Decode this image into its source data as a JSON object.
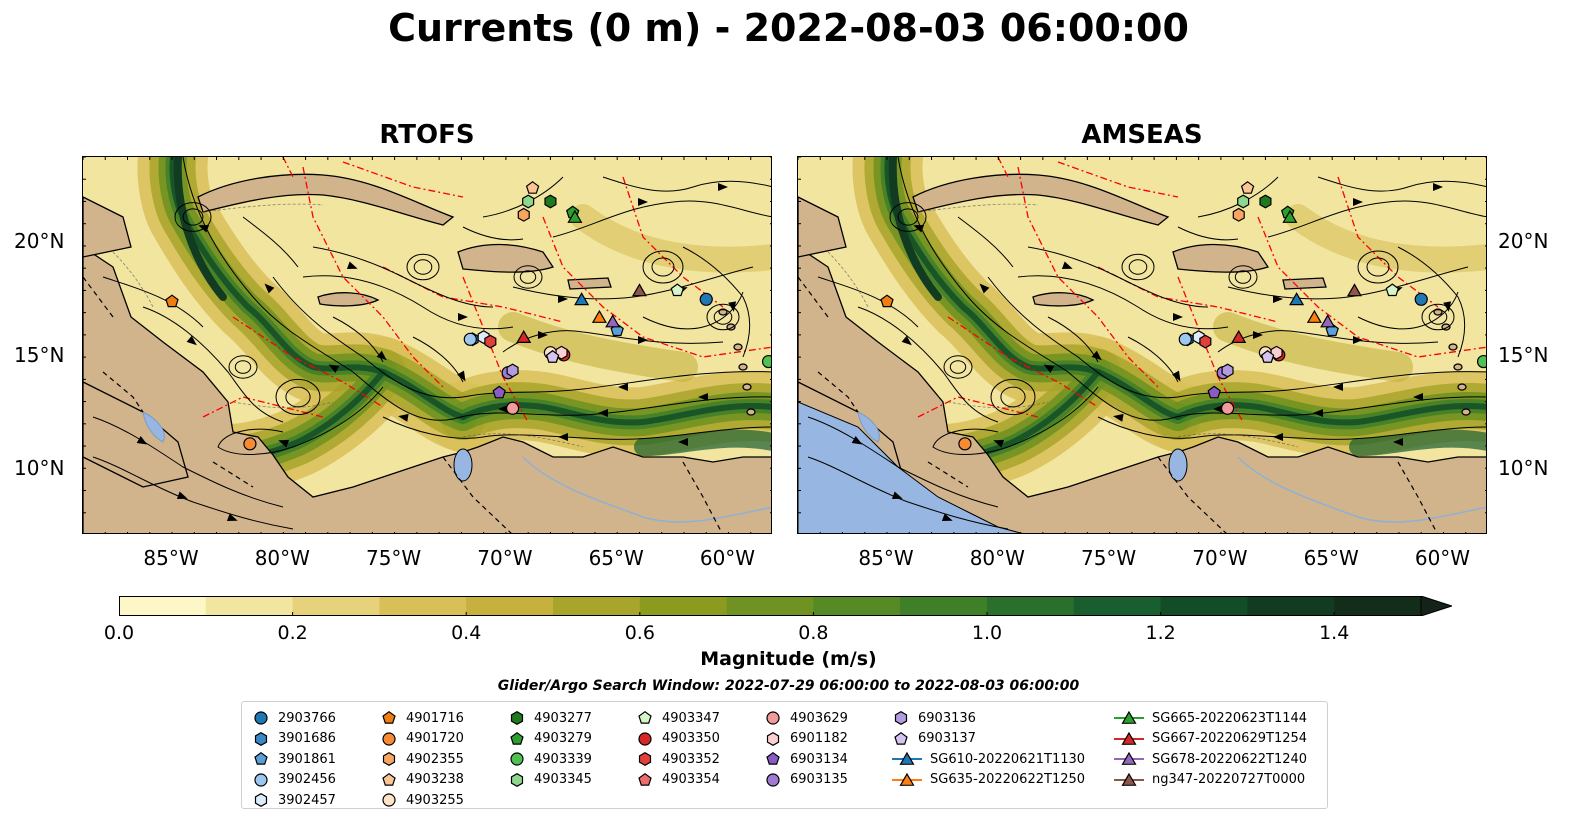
{
  "title": "Currents (0 m) - 2022-08-03 06:00:00",
  "panels": [
    {
      "id": "rtofs",
      "title": "RTOFS"
    },
    {
      "id": "amseas",
      "title": "AMSEAS"
    }
  ],
  "map_extent": {
    "lon": [
      -89,
      -58
    ],
    "lat": [
      7,
      24
    ]
  },
  "lat_ticks": [
    "20°N",
    "15°N",
    "10°N"
  ],
  "lon_ticks": [
    "85°W",
    "80°W",
    "75°W",
    "70°W",
    "65°W",
    "60°W"
  ],
  "colorbar": {
    "label": "Magnitude (m/s)",
    "ticks": [
      "0.0",
      "0.2",
      "0.4",
      "0.6",
      "0.8",
      "1.0",
      "1.2",
      "1.4"
    ],
    "range": [
      0,
      1.5
    ],
    "extend": "max",
    "colors": [
      "#fdf6c6",
      "#f1e5a0",
      "#e6d27a",
      "#d9bf58",
      "#c6b03e",
      "#a8a52c",
      "#8c9b20",
      "#6f9222",
      "#558a25",
      "#3e7f28",
      "#2a6f2c",
      "#185e2e",
      "#124d28",
      "#123c22",
      "#142d1b",
      "#14221a"
    ]
  },
  "colors": {
    "land": "#d2b48c",
    "boundary": "#ff0000",
    "lake": "#97b6e1"
  },
  "search_window": "Glider/Argo Search Window: 2022-07-29 06:00:00 to 2022-08-03 06:00:00",
  "legend": [
    [
      {
        "label": "2903766",
        "marker": "circle",
        "color": "#1f77b4"
      },
      {
        "label": "3901686",
        "marker": "hexagon",
        "color": "#3a87c4"
      },
      {
        "label": "3901861",
        "marker": "pentagon",
        "color": "#5a9fd8"
      },
      {
        "label": "3902456",
        "marker": "circle",
        "color": "#9dc8ee"
      },
      {
        "label": "3902457",
        "marker": "hexagon",
        "color": "#dcecfb"
      }
    ],
    [
      {
        "label": "4901716",
        "marker": "pentagon",
        "color": "#ef7d10"
      },
      {
        "label": "4901720",
        "marker": "circle",
        "color": "#f68a35"
      },
      {
        "label": "4902355",
        "marker": "hexagon",
        "color": "#f8a561"
      },
      {
        "label": "4903238",
        "marker": "pentagon",
        "color": "#fbc594"
      },
      {
        "label": "4903255",
        "marker": "circle",
        "color": "#fde3c8"
      }
    ],
    [
      {
        "label": "4903277",
        "marker": "hexagon",
        "color": "#1f7a1f"
      },
      {
        "label": "4903279",
        "marker": "pentagon",
        "color": "#2f9e2f"
      },
      {
        "label": "4903339",
        "marker": "circle",
        "color": "#50c050"
      },
      {
        "label": "4903345",
        "marker": "hexagon",
        "color": "#8ed88e"
      }
    ],
    [
      {
        "label": "4903347",
        "marker": "pentagon",
        "color": "#d6f5c8"
      },
      {
        "label": "4903350",
        "marker": "circle",
        "color": "#d62728"
      },
      {
        "label": "4903352",
        "marker": "hexagon",
        "color": "#e0403a"
      },
      {
        "label": "4903354",
        "marker": "pentagon",
        "color": "#f06b6b"
      }
    ],
    [
      {
        "label": "4903629",
        "marker": "circle",
        "color": "#f39a9a"
      },
      {
        "label": "6901182",
        "marker": "hexagon",
        "color": "#fbd0d0"
      },
      {
        "label": "6903134",
        "marker": "pentagon",
        "color": "#8a5bc4"
      },
      {
        "label": "6903135",
        "marker": "circle",
        "color": "#9e7ad2"
      }
    ],
    [
      {
        "label": "6903136",
        "marker": "hexagon",
        "color": "#b39be0"
      },
      {
        "label": "6903137",
        "marker": "pentagon",
        "color": "#d3c5f0"
      },
      {
        "label": "SG610-20220621T1130",
        "marker": "triangle",
        "color": "#1f77b4"
      },
      {
        "label": "SG635-20220622T1250",
        "marker": "triangle",
        "color": "#ff7f0e"
      }
    ],
    [
      {
        "label": "SG665-20220623T1144",
        "marker": "triangle",
        "color": "#2ca02c"
      },
      {
        "label": "SG667-20220629T1254",
        "marker": "triangle",
        "color": "#d62728"
      },
      {
        "label": "SG678-20220622T1240",
        "marker": "triangle",
        "color": "#9467bd"
      },
      {
        "label": "ng347-20220727T0000",
        "marker": "triangle",
        "color": "#8c564b"
      }
    ]
  ],
  "platforms": [
    {
      "label": "2903766",
      "lon": -61.0,
      "lat": 17.6
    },
    {
      "label": "3901686",
      "lon": -71.5,
      "lat": 15.8
    },
    {
      "label": "3901861",
      "lon": -65.0,
      "lat": 16.2
    },
    {
      "label": "3902456",
      "lon": -71.6,
      "lat": 15.8
    },
    {
      "label": "3902457",
      "lon": -71.0,
      "lat": 15.9
    },
    {
      "label": "4901716",
      "lon": -85.0,
      "lat": 17.5
    },
    {
      "label": "4901720",
      "lon": -81.5,
      "lat": 11.1
    },
    {
      "label": "4902355",
      "lon": -69.2,
      "lat": 21.4
    },
    {
      "label": "4903238",
      "lon": -68.8,
      "lat": 22.6
    },
    {
      "label": "4903255",
      "lon": -68.0,
      "lat": 15.2
    },
    {
      "label": "4903277",
      "lon": -68.0,
      "lat": 22.0
    },
    {
      "label": "4903279",
      "lon": -67.0,
      "lat": 21.5
    },
    {
      "label": "4903339",
      "lon": -58.2,
      "lat": 14.8
    },
    {
      "label": "4903345",
      "lon": -69.0,
      "lat": 22.0
    },
    {
      "label": "4903347",
      "lon": -62.3,
      "lat": 18.0
    },
    {
      "label": "4903350",
      "lon": -67.4,
      "lat": 15.1
    },
    {
      "label": "4903352",
      "lon": -70.7,
      "lat": 15.7
    },
    {
      "label": "4903354",
      "lon": -67.9,
      "lat": 15.0
    },
    {
      "label": "4903629",
      "lon": -69.7,
      "lat": 12.7
    },
    {
      "label": "6901182",
      "lon": -67.5,
      "lat": 15.2
    },
    {
      "label": "6903134",
      "lon": -70.3,
      "lat": 13.4
    },
    {
      "label": "6903135",
      "lon": -69.9,
      "lat": 14.3
    },
    {
      "label": "6903136",
      "lon": -69.7,
      "lat": 14.4
    },
    {
      "label": "6903137",
      "lon": -67.9,
      "lat": 15.0
    },
    {
      "label": "SG610-20220621T1130",
      "lon": -66.6,
      "lat": 17.6
    },
    {
      "label": "SG635-20220622T1250",
      "lon": -65.8,
      "lat": 16.8
    },
    {
      "label": "SG665-20220623T1144",
      "lon": -66.9,
      "lat": 21.3
    },
    {
      "label": "SG667-20220629T1254",
      "lon": -69.2,
      "lat": 15.9
    },
    {
      "label": "SG678-20220622T1240",
      "lon": -65.2,
      "lat": 16.6
    },
    {
      "label": "ng347-20220727T0000",
      "lon": -64.0,
      "lat": 18.0
    }
  ]
}
